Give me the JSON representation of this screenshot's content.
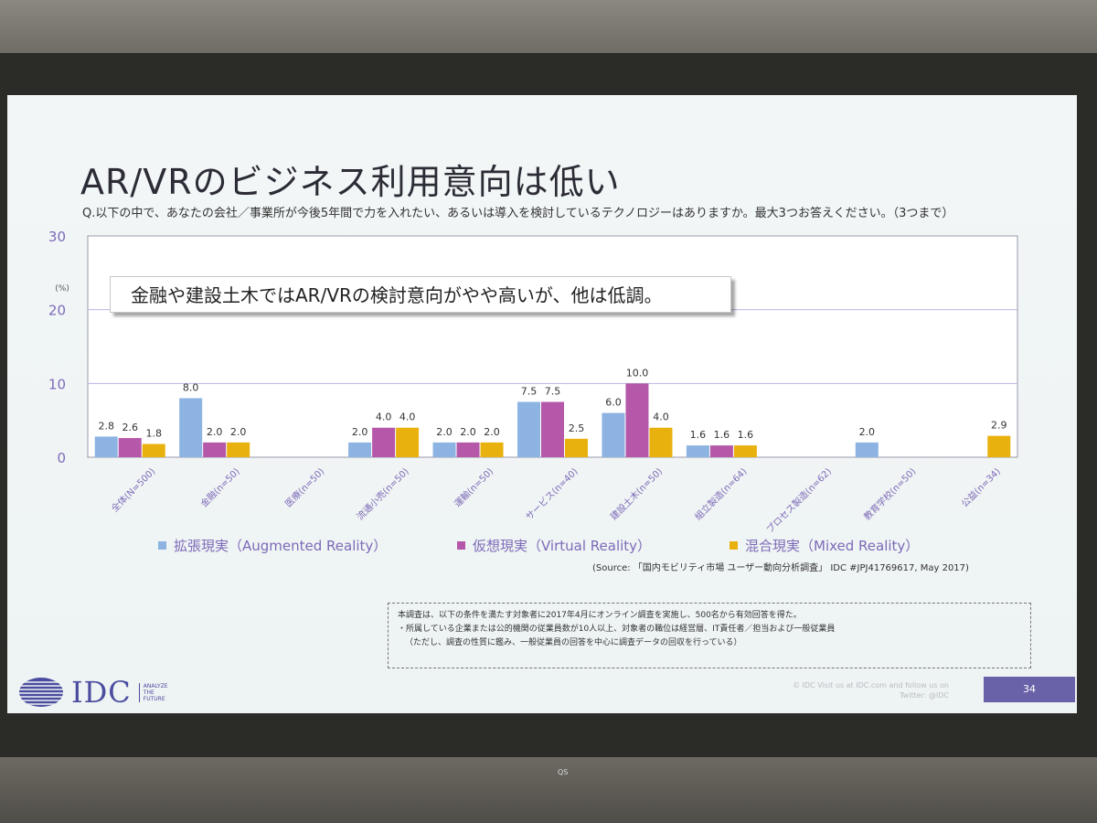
{
  "slide": {
    "title": "AR/VRのビジネス利用意向は低い",
    "question": "Q.以下の中で、あなたの会社／事業所が今後5年間で力を入れたい、あるいは導入を検討しているテクノロジーはありますか。最大3つお答えください。（3つまで）",
    "callout": "金融や建設土木ではAR/VRの検討意向がやや高いが、他は低調。",
    "source": "(Source: 「国内モビリティ市場 ユーザー動向分析調査」 IDC #JPJ41769617, May 2017)",
    "note": {
      "line1": "本調査は、以下の条件を満たす対象者に2017年4月にオンライン調査を実施し、500名から有効回答を得た。",
      "line2": "・所属している企業または公的機関の従業員数が10人以上、対象者の職位は経営層、IT責任者／担当および一般従業員",
      "line3": "（ただし、調査の性質に鑑み、一般従業員の回答を中心に調査データの回収を行っている）"
    },
    "footer": {
      "logo": "IDC",
      "tagline": [
        "ANALYZE",
        "THE",
        "FUTURE"
      ],
      "copyright_1": "© IDC Visit us at IDC.com and follow us on",
      "copyright_2": "Twitter: @IDC",
      "page_number": "34"
    }
  },
  "stand_label": "QS",
  "chart_data": {
    "type": "bar",
    "ylabel": "(%)",
    "ylim": [
      0,
      30
    ],
    "yticks": [
      "0",
      "10",
      "20",
      "30"
    ],
    "grid": true,
    "legend_position": "bottom",
    "categories": [
      "全体(N=500)",
      "金融(n=50)",
      "医療(n=50)",
      "流通小売(n=50)",
      "運輸(n=50)",
      "サービス(n=40)",
      "建設土木(n=50)",
      "組立製造(n=64)",
      "プロセス製造(n=62)",
      "教育学校(n=50)",
      "公益(n=34)"
    ],
    "series": [
      {
        "name": "拡張現実（Augmented Reality）",
        "color": "#8db3e2",
        "values": [
          2.8,
          8.0,
          null,
          2.0,
          2.0,
          7.5,
          6.0,
          1.6,
          null,
          2.0,
          null
        ]
      },
      {
        "name": "仮想現実（Virtual Reality）",
        "color": "#b558a9",
        "values": [
          2.6,
          2.0,
          null,
          4.0,
          2.0,
          7.5,
          10.0,
          1.6,
          null,
          null,
          null
        ]
      },
      {
        "name": "混合現実（Mixed Reality）",
        "color": "#e9b10e",
        "values": [
          1.8,
          2.0,
          null,
          4.0,
          2.0,
          2.5,
          4.0,
          1.6,
          null,
          null,
          2.9
        ]
      }
    ],
    "data_labels": [
      [
        "2.8",
        "8.0",
        "",
        "2.0",
        "2.0",
        "7.5",
        "6.0",
        "1.6",
        "",
        "2.0",
        ""
      ],
      [
        "2.6",
        "2.0",
        "",
        "4.0",
        "2.0",
        "7.5",
        "10.0",
        "1.6",
        "",
        "",
        ""
      ],
      [
        "1.8",
        "2.0",
        "",
        "4.0",
        "2.0",
        "2.5",
        "4.0",
        "1.6",
        "",
        "",
        "2.9"
      ]
    ]
  }
}
